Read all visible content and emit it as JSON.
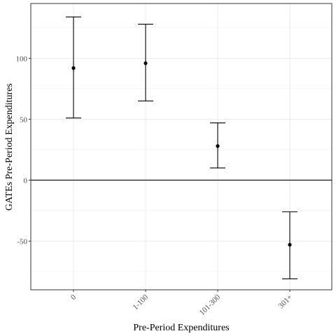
{
  "chart_data": {
    "type": "scatter",
    "subtype": "point-with-error-bars",
    "title": "",
    "xlabel": "Pre-Period Expenditures",
    "ylabel": "GATEs Pre-Period Expenditures",
    "categories": [
      "0",
      "1-100",
      "101-300",
      "301+"
    ],
    "points": [
      {
        "category": "0",
        "estimate": 92,
        "lower": 51,
        "upper": 134
      },
      {
        "category": "1-100",
        "estimate": 96,
        "lower": 65,
        "upper": 128
      },
      {
        "category": "101-300",
        "estimate": 28,
        "lower": 10,
        "upper": 47
      },
      {
        "category": "301+",
        "estimate": -53,
        "lower": -81,
        "upper": -26
      }
    ],
    "ylim": [
      -90,
      145
    ],
    "yticks": [
      -50,
      0,
      50,
      100
    ],
    "reference_line_y": 0,
    "grid": true,
    "legend": "none",
    "x_tick_rotation": "45 degrees",
    "colors": {
      "points": "#000000",
      "grid": "#ebebeb",
      "panel_border": "#333333"
    }
  }
}
